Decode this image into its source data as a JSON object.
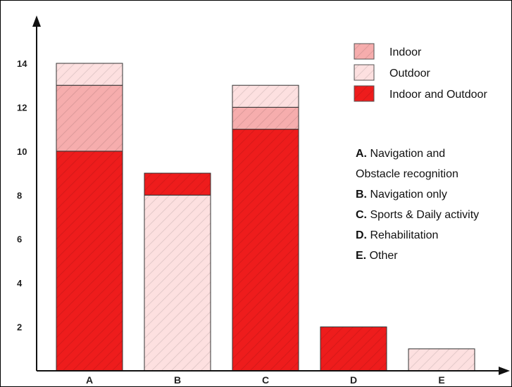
{
  "chart_data": {
    "type": "bar",
    "stacked": true,
    "categories": [
      "A",
      "B",
      "C",
      "D",
      "E"
    ],
    "series": [
      {
        "name": "Indoor and Outdoor",
        "values": [
          10,
          1,
          11,
          2,
          0
        ],
        "color": "#ee1c1c"
      },
      {
        "name": "Indoor",
        "values": [
          3,
          0,
          1,
          0,
          0
        ],
        "color": "#f6adad"
      },
      {
        "name": "Outdoor",
        "values": [
          1,
          8,
          1,
          0,
          1
        ],
        "color": "#fde0e0"
      }
    ],
    "stack_order": [
      [
        "Indoor and Outdoor",
        "Indoor",
        "Outdoor"
      ],
      [
        "Outdoor",
        "Indoor and Outdoor"
      ],
      [
        "Indoor and Outdoor",
        "Indoor",
        "Outdoor"
      ],
      [
        "Indoor and Outdoor"
      ],
      [
        "Outdoor"
      ]
    ],
    "y_ticks": [
      2,
      4,
      6,
      8,
      10,
      12,
      14
    ],
    "ylim": [
      0,
      14
    ],
    "title": "",
    "xlabel": "",
    "ylabel": "",
    "grid": false,
    "legend_order": [
      "Indoor",
      "Outdoor",
      "Indoor and Outdoor"
    ],
    "legend_position": "top-right",
    "annotation": [
      {
        "key": "A.",
        "text": "Navigation and"
      },
      {
        "key": "",
        "text": "Obstacle recognition"
      },
      {
        "key": "B.",
        "text": "Navigation only"
      },
      {
        "key": "C.",
        "text": "Sports & Daily activity"
      },
      {
        "key": "D.",
        "text": "Rehabilitation"
      },
      {
        "key": "E.",
        "text": "Other"
      }
    ]
  }
}
